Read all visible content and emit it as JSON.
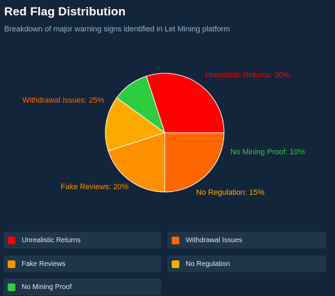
{
  "header": {
    "title": "Red Flag Distribution",
    "subtitle": "Breakdown of major warning signs identified in Let Mining platform"
  },
  "chart_data": {
    "type": "pie",
    "title": "Red Flag Distribution",
    "subtitle": "Breakdown of major warning signs identified in Let Mining platform",
    "slices": [
      {
        "name": "Unrealistic Returns",
        "value": 30,
        "color": "#ff0000",
        "label": "Unrealistic Returns: 30%"
      },
      {
        "name": "No Mining Proof",
        "value": 10,
        "color": "#2ecc40",
        "label": "No Mining Proof: 10%"
      },
      {
        "name": "No Regulation",
        "value": 15,
        "color": "#ffaa00",
        "label": "No Regulation: 15%"
      },
      {
        "name": "Fake Reviews",
        "value": 20,
        "color": "#ff9100",
        "label": "Fake Reviews: 20%"
      },
      {
        "name": "Withdrawal Issues",
        "value": 25,
        "color": "#ff6600",
        "label": "Withdrawal Issues: 25%"
      }
    ],
    "legend_position": "bottom",
    "start": "3 o'clock, counter-clockwise"
  },
  "legend": {
    "items": [
      {
        "label": "Unrealistic Returns",
        "color": "#ff0000"
      },
      {
        "label": "Withdrawal Issues",
        "color": "#ff6600"
      },
      {
        "label": "Fake Reviews",
        "color": "#ff9100"
      },
      {
        "label": "No Regulation",
        "color": "#ffaa00"
      },
      {
        "label": "No Mining Proof",
        "color": "#2ecc40"
      }
    ]
  },
  "colors": {
    "background": "#13253a",
    "legend_bg": "#1f3549",
    "title": "#ffffff",
    "subtitle": "#8fb3cc",
    "slice_border": "#ffffff"
  }
}
